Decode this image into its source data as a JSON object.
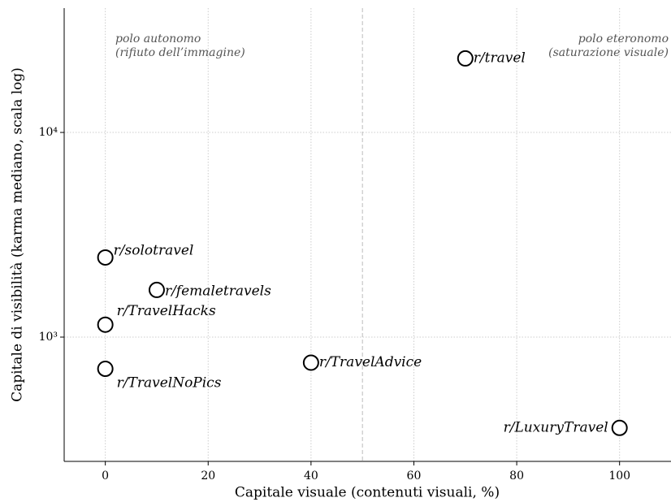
{
  "chart_data": {
    "type": "scatter",
    "xlabel": "Capitale visuale (contenuti visuali, %)",
    "ylabel": "Capitale di visibilità (karma mediano, scala log)",
    "x": [
      70,
      0,
      10,
      0,
      0,
      40,
      100
    ],
    "values": [
      23000,
      2450,
      1700,
      1150,
      700,
      750,
      360
    ],
    "point_labels": [
      "r/travel",
      "r/solotravel",
      "r/femaletravels",
      "r/TravelHacks",
      "r/TravelNoPics",
      "r/TravelAdvice",
      "r/LuxuryTravel"
    ],
    "color": "#000000",
    "xlim": [
      -8,
      110
    ],
    "xticks": [
      0,
      20,
      40,
      60,
      80,
      100
    ],
    "ylim": [
      247,
      40500
    ],
    "ylog": true,
    "yticks": [
      {
        "value": 1000,
        "label": "10³"
      },
      {
        "value": 10000,
        "label": "10⁴"
      }
    ],
    "grid": true,
    "vline": 50,
    "annotations": [
      {
        "lines": [
          "polo autonomo",
          "(rifiuto dell’immagine)"
        ]
      },
      {
        "lines": [
          "polo eteronomo",
          "(saturazione visuale)"
        ]
      }
    ]
  }
}
